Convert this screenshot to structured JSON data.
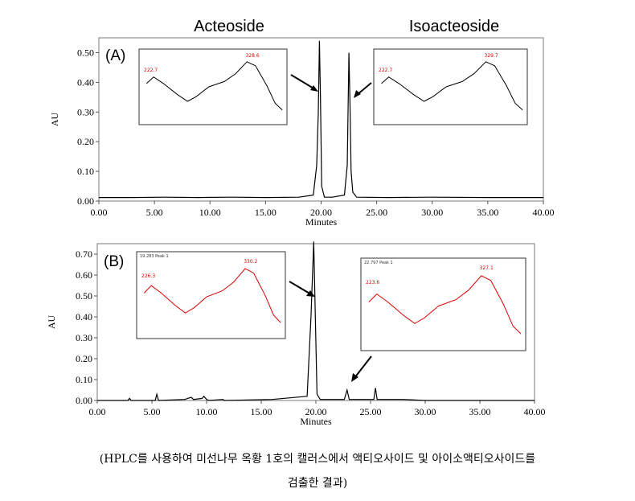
{
  "chart_data": [
    {
      "type": "line",
      "panel_label": "(A)",
      "peak_titles": [
        "Acteoside",
        "Isoacteoside"
      ],
      "xlabel": "Minutes",
      "ylabel": "AU",
      "xlim": [
        0,
        40
      ],
      "ylim": [
        0,
        0.55
      ],
      "x_ticks": [
        "0.00",
        "5.00",
        "10.00",
        "15.00",
        "20.00",
        "25.00",
        "30.00",
        "35.00",
        "40.00"
      ],
      "y_ticks": [
        "0.00",
        "0.10",
        "0.20",
        "0.30",
        "0.40",
        "0.50"
      ],
      "series": [
        {
          "x": [
            0,
            3,
            6,
            9,
            12,
            15,
            18,
            19.3,
            19.6,
            19.75,
            19.85,
            19.95,
            20.05,
            20.3,
            21,
            22.1,
            22.35,
            22.5,
            22.6,
            22.7,
            22.85,
            23.2,
            26,
            30,
            35,
            40
          ],
          "values": [
            0.012,
            0.012,
            0.013,
            0.012,
            0.013,
            0.012,
            0.013,
            0.02,
            0.12,
            0.3,
            0.54,
            0.33,
            0.05,
            0.013,
            0.013,
            0.02,
            0.12,
            0.5,
            0.33,
            0.1,
            0.03,
            0.013,
            0.012,
            0.013,
            0.012,
            0.012
          ]
        }
      ],
      "insets": [
        {
          "labels": [
            "222.7",
            "328.6"
          ]
        },
        {
          "labels": [
            "222.7",
            "329.7"
          ]
        }
      ]
    },
    {
      "type": "line",
      "panel_label": "(B)",
      "xlabel": "Minutes",
      "ylabel": "AU",
      "xlim": [
        0,
        40
      ],
      "ylim": [
        0,
        0.75
      ],
      "x_ticks": [
        "0.00",
        "5.00",
        "10.00",
        "15.00",
        "20.00",
        "25.00",
        "30.00",
        "35.00",
        "40.00"
      ],
      "y_ticks": [
        "0.00",
        "0.10",
        "0.20",
        "0.30",
        "0.40",
        "0.50",
        "0.60",
        "0.70"
      ],
      "series": [
        {
          "x": [
            0,
            2.8,
            2.95,
            3.1,
            5.3,
            5.45,
            5.6,
            8,
            8.6,
            8.8,
            9.6,
            9.75,
            10,
            10.2,
            11.5,
            11.6,
            16,
            19.2,
            19.55,
            19.8,
            19.95,
            20.1,
            20.4,
            22.6,
            22.85,
            23.05,
            25.3,
            25.45,
            25.6,
            28,
            30,
            33,
            35,
            40
          ],
          "values": [
            0.0,
            0.0,
            0.01,
            0.0,
            0.0,
            0.03,
            0.0,
            0.005,
            0.015,
            0.005,
            0.01,
            0.02,
            0.005,
            0.0,
            0.005,
            0.0,
            0.005,
            0.02,
            0.4,
            0.76,
            0.4,
            0.03,
            0.005,
            0.005,
            0.05,
            0.005,
            0.005,
            0.06,
            0.005,
            0.005,
            0.0,
            0.0,
            0.0,
            0.0
          ]
        }
      ],
      "insets": [
        {
          "header": "19.283 Peak 1",
          "labels": [
            "226.3",
            "330.2"
          ]
        },
        {
          "header": "22.797 Peak 1",
          "labels": [
            "223.6",
            "327.1"
          ]
        }
      ]
    }
  ],
  "caption": {
    "line1": "(HPLC를 사용하여 미선나무 옥황 1호의 캘러스에서 액티오사이드 및 아이소액티오사이드를",
    "line2": "검출한 결과)"
  }
}
